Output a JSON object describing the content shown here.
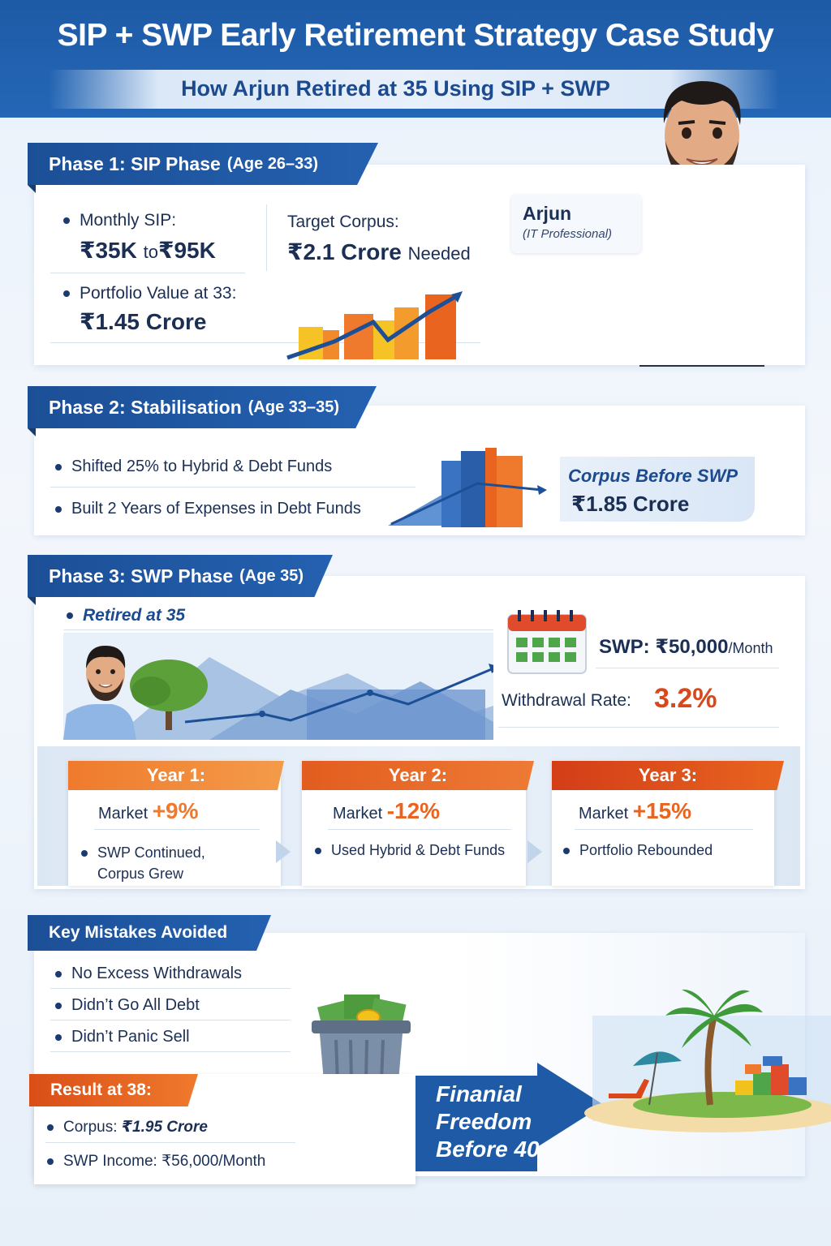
{
  "header": {
    "title": "SIP + SWP Early Retirement Strategy Case Study",
    "subtitle": "How Arjun Retired at 35 Using SIP + SWP"
  },
  "phase1": {
    "title": "Phase 1: SIP Phase",
    "age": "(Age 26–33)",
    "monthly_sip_label": "Monthly SIP:",
    "monthly_sip_from": "₹35K",
    "monthly_sip_to_word": "to",
    "monthly_sip_to": "₹95K",
    "target_label": "Target Corpus:",
    "target_value": "₹2.1 Crore",
    "target_suffix": "Needed",
    "portfolio_label": "Portfolio Value at 33:",
    "portfolio_value": "₹1.45 Crore",
    "person_name": "Arjun",
    "person_role": "(IT Professional)"
  },
  "phase2": {
    "title": "Phase 2: Stabilisation",
    "age": "(Age 33–35)",
    "items": [
      "Shifted 25% to Hybrid & Debt Funds",
      "Built 2 Years of Expenses in Debt Funds"
    ],
    "corpus_label": "Corpus Before SWP",
    "corpus_value": "₹1.85 Crore"
  },
  "phase3": {
    "title": "Phase 3: SWP Phase",
    "age": "(Age 35)",
    "retired": "Retired at 35",
    "swp_label": "SWP: ₹50,000",
    "swp_unit": "/Month",
    "withdrawal_label": "Withdrawal Rate:",
    "withdrawal_value": "3.2%",
    "years": [
      {
        "label": "Year 1:",
        "market_word": "Market",
        "market_change": "+9%",
        "note_line1": "SWP Continued,",
        "note_line2": "Corpus Grew",
        "color": "#ef7a2d"
      },
      {
        "label": "Year 2:",
        "market_word": "Market",
        "market_change": "-12%",
        "note_line1": "Used Hybrid & Debt Funds",
        "note_line2": "",
        "color": "#e8641f"
      },
      {
        "label": "Year 3:",
        "market_word": "Market",
        "market_change": "+15%",
        "note_line1": "Portfolio Rebounded",
        "note_line2": "",
        "color": "#d9471a"
      }
    ]
  },
  "mistakes": {
    "title": "Key Mistakes Avoided",
    "items": [
      "No Excess Withdrawals",
      "Didn’t Go All Debt",
      "Didn’t Panic Sell"
    ]
  },
  "result": {
    "title": "Result at 38:",
    "corpus_label": "Corpus:",
    "corpus_value": "₹1.95 Crore",
    "swp_label": "SWP Income: ₹56,000/Month"
  },
  "freedom": {
    "line1": "Finanial",
    "line2": "Freedom",
    "line3": "Before 40"
  },
  "colors": {
    "brand_blue": "#1e5aa6",
    "accent_orange": "#ef7a2d",
    "positive_orange": "#e8641f",
    "negative_red": "#d9471a"
  }
}
